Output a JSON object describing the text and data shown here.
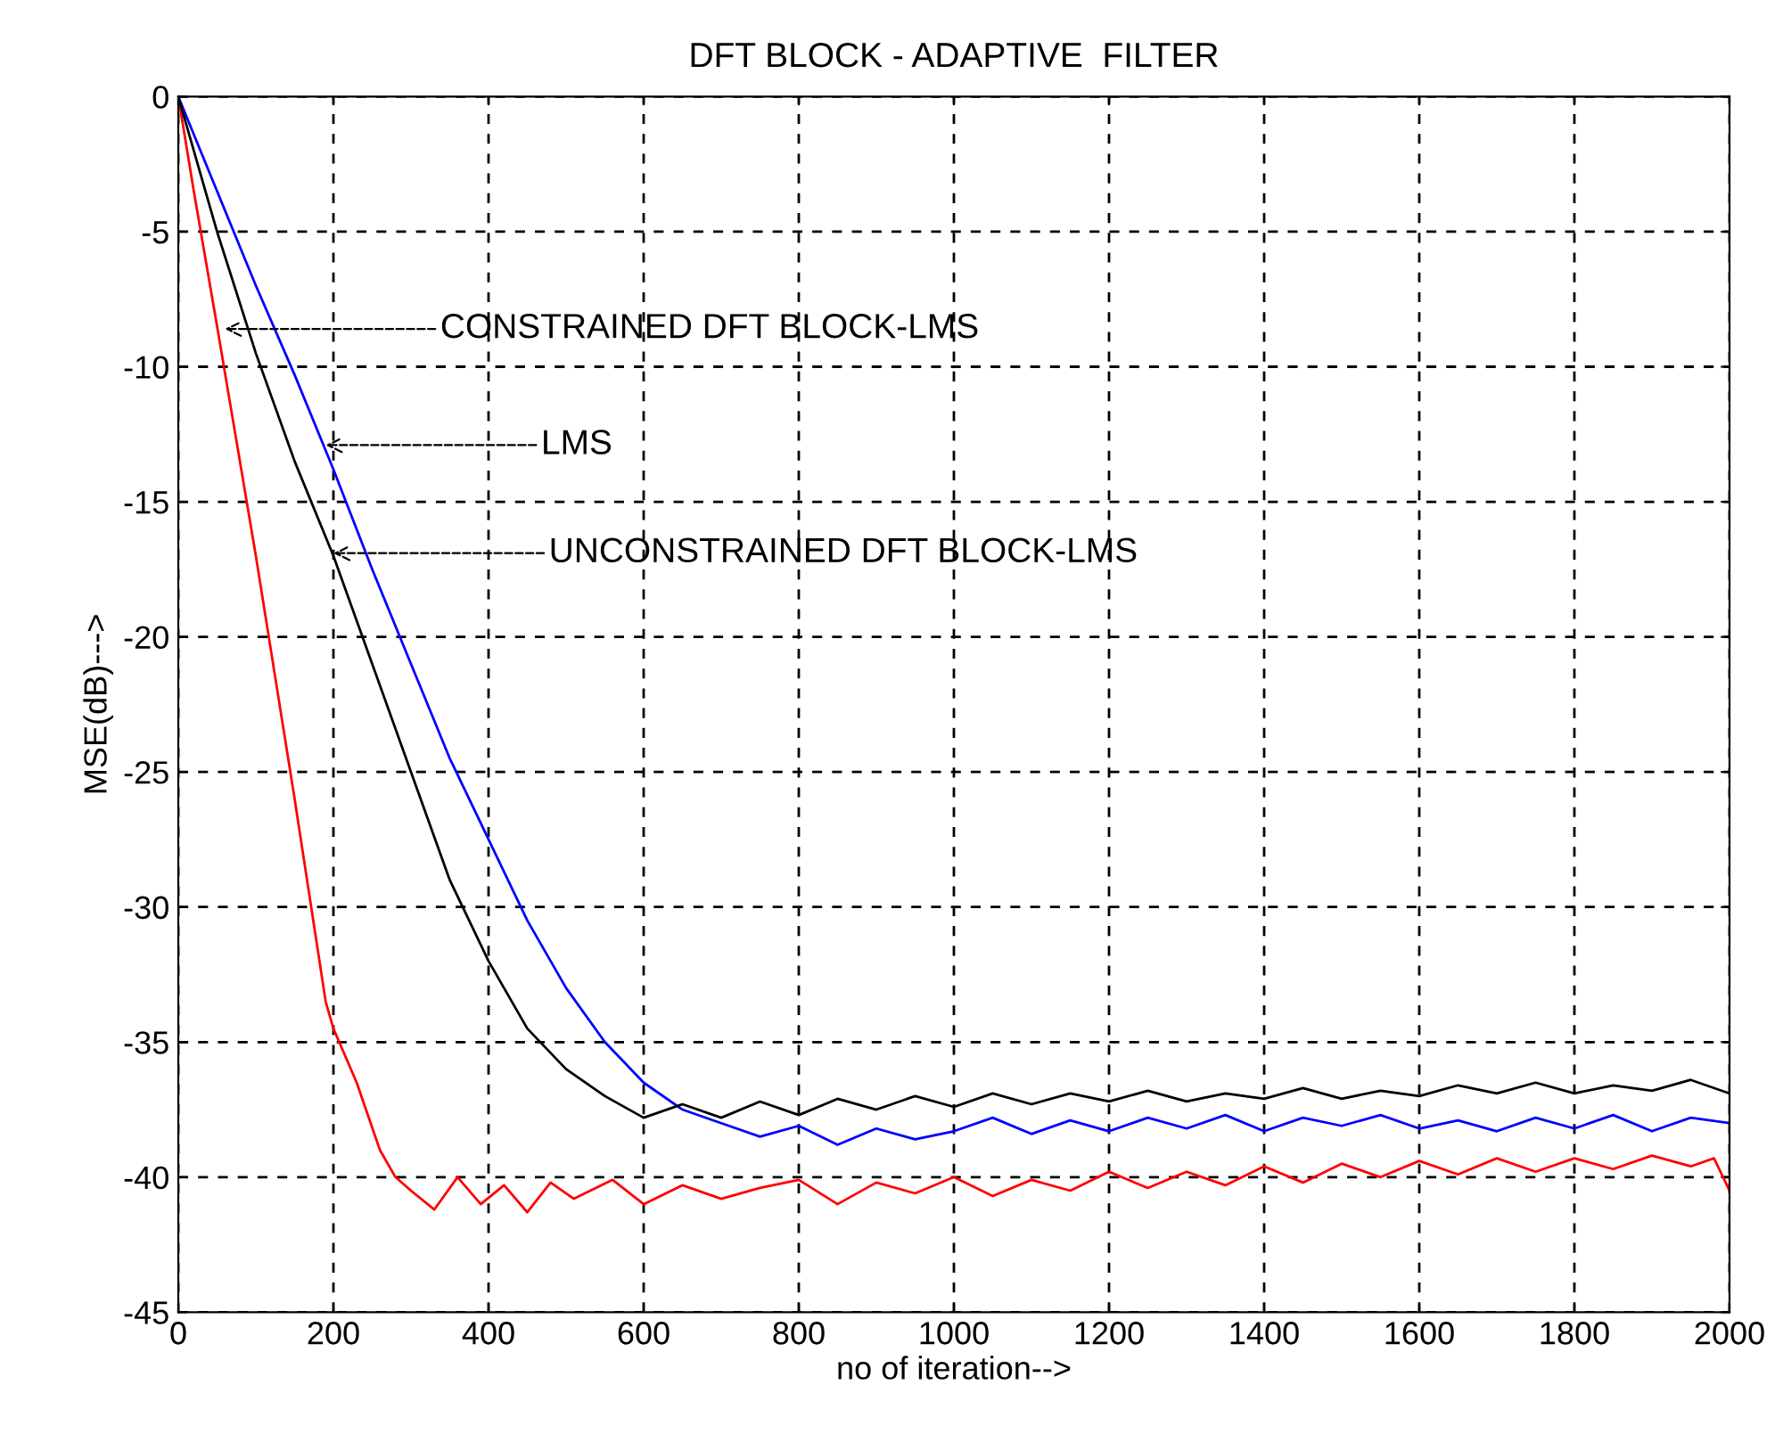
{
  "chart_data": {
    "type": "line",
    "title": "DFT BLOCK - ADAPTIVE  FILTER",
    "xlabel": "no of iteration-->",
    "ylabel": "MSE(dB)--->",
    "xlim": [
      0,
      2000
    ],
    "xticks": [
      0,
      200,
      400,
      600,
      800,
      1000,
      1200,
      1400,
      1600,
      1800,
      2000
    ],
    "ylim": [
      -45,
      0
    ],
    "yticks": [
      -45,
      -40,
      -35,
      -30,
      -25,
      -20,
      -15,
      -10,
      -5,
      0
    ],
    "grid": true,
    "legend": false,
    "marker": "none",
    "line_style": "solid",
    "series": [
      {
        "color": "#ff0000",
        "x": [
          0,
          20,
          50,
          100,
          150,
          190,
          200,
          230,
          260,
          280,
          300,
          330,
          360,
          390,
          420,
          450,
          480,
          510,
          560,
          600,
          650,
          700,
          750,
          800,
          850,
          900,
          950,
          1000,
          1050,
          1100,
          1150,
          1200,
          1250,
          1300,
          1350,
          1400,
          1450,
          1500,
          1550,
          1600,
          1650,
          1700,
          1750,
          1800,
          1850,
          1900,
          1950,
          1980,
          2000
        ],
        "values": [
          0,
          -3.5,
          -8.5,
          -17,
          -26,
          -33.5,
          -34.5,
          -36.5,
          -39,
          -40,
          -40.5,
          -41.2,
          -40,
          -41,
          -40.3,
          -41.3,
          -40.2,
          -40.8,
          -40.1,
          -41,
          -40.3,
          -40.8,
          -40.4,
          -40.1,
          -41,
          -40.2,
          -40.6,
          -40,
          -40.7,
          -40.1,
          -40.5,
          -39.8,
          -40.4,
          -39.8,
          -40.3,
          -39.6,
          -40.2,
          -39.5,
          -40,
          -39.4,
          -39.9,
          -39.3,
          -39.8,
          -39.3,
          -39.7,
          -39.2,
          -39.6,
          -39.3,
          -40.5
        ]
      },
      {
        "color": "#0000ff",
        "x": [
          0,
          50,
          100,
          150,
          200,
          250,
          300,
          350,
          400,
          450,
          500,
          550,
          600,
          650,
          700,
          750,
          800,
          850,
          900,
          950,
          1000,
          1050,
          1100,
          1150,
          1200,
          1250,
          1300,
          1350,
          1400,
          1450,
          1500,
          1550,
          1600,
          1650,
          1700,
          1750,
          1800,
          1850,
          1900,
          1950,
          2000
        ],
        "values": [
          0,
          -3.5,
          -7,
          -10.3,
          -13.8,
          -17.5,
          -21,
          -24.5,
          -27.5,
          -30.5,
          -33,
          -35,
          -36.5,
          -37.5,
          -38,
          -38.5,
          -38.1,
          -38.8,
          -38.2,
          -38.6,
          -38.3,
          -37.8,
          -38.4,
          -37.9,
          -38.3,
          -37.8,
          -38.2,
          -37.7,
          -38.3,
          -37.8,
          -38.1,
          -37.7,
          -38.2,
          -37.9,
          -38.3,
          -37.8,
          -38.2,
          -37.7,
          -38.3,
          -37.8,
          -38
        ]
      },
      {
        "color": "#000000",
        "x": [
          0,
          50,
          100,
          150,
          200,
          250,
          300,
          350,
          400,
          450,
          500,
          550,
          600,
          650,
          700,
          750,
          800,
          850,
          900,
          950,
          1000,
          1050,
          1100,
          1150,
          1200,
          1250,
          1300,
          1350,
          1400,
          1450,
          1500,
          1550,
          1600,
          1650,
          1700,
          1750,
          1800,
          1850,
          1900,
          1950,
          2000
        ],
        "values": [
          0,
          -5,
          -9.5,
          -13.5,
          -17,
          -21,
          -25,
          -29,
          -32,
          -34.5,
          -36,
          -37,
          -37.8,
          -37.3,
          -37.8,
          -37.2,
          -37.7,
          -37.1,
          -37.5,
          -37,
          -37.4,
          -36.9,
          -37.3,
          -36.9,
          -37.2,
          -36.8,
          -37.2,
          -36.9,
          -37.1,
          -36.7,
          -37.1,
          -36.8,
          -37,
          -36.6,
          -36.9,
          -36.5,
          -36.9,
          -36.6,
          -36.8,
          -36.4,
          -36.9
        ]
      }
    ],
    "annotations": [
      {
        "text": "CONSTRAINED DFT BLOCK-LMS",
        "x": 60,
        "y": -8.6
      },
      {
        "text": "LMS",
        "x": 190,
        "y": -12.9
      },
      {
        "text": "UNCONSTRAINED DFT BLOCK-LMS",
        "x": 200,
        "y": -16.9
      }
    ]
  }
}
